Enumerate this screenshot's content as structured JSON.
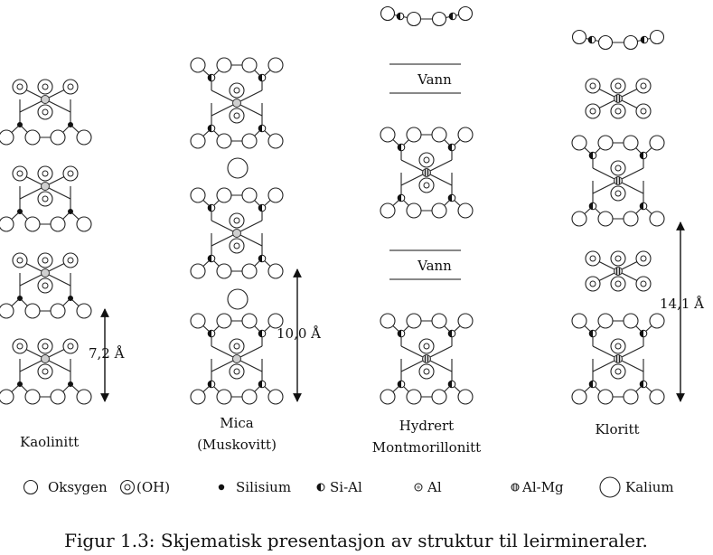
{
  "minerals": {
    "kaolinitt": {
      "name": "Kaolinitt",
      "spacing": "7,2 Å"
    },
    "mica": {
      "name_line1": "Mica",
      "name_line2": "(Muskovitt)",
      "spacing": "10,0 Å"
    },
    "montmorillonitt": {
      "name_line1": "Hydrert",
      "name_line2": "Montmorillonitt",
      "water_label": "Vann"
    },
    "kloritt": {
      "name": "Kloritt",
      "spacing": "14,1 Å"
    }
  },
  "legend": {
    "oksygen": "Oksygen",
    "oh": "(OH)",
    "silisium": "Silisium",
    "si_al": "Si-Al",
    "al": "Al",
    "al_mg": "Al-Mg",
    "kalium": "Kalium"
  },
  "caption": "Figur 1.3: Skjematisk presentasjon av struktur til leirmineraler."
}
